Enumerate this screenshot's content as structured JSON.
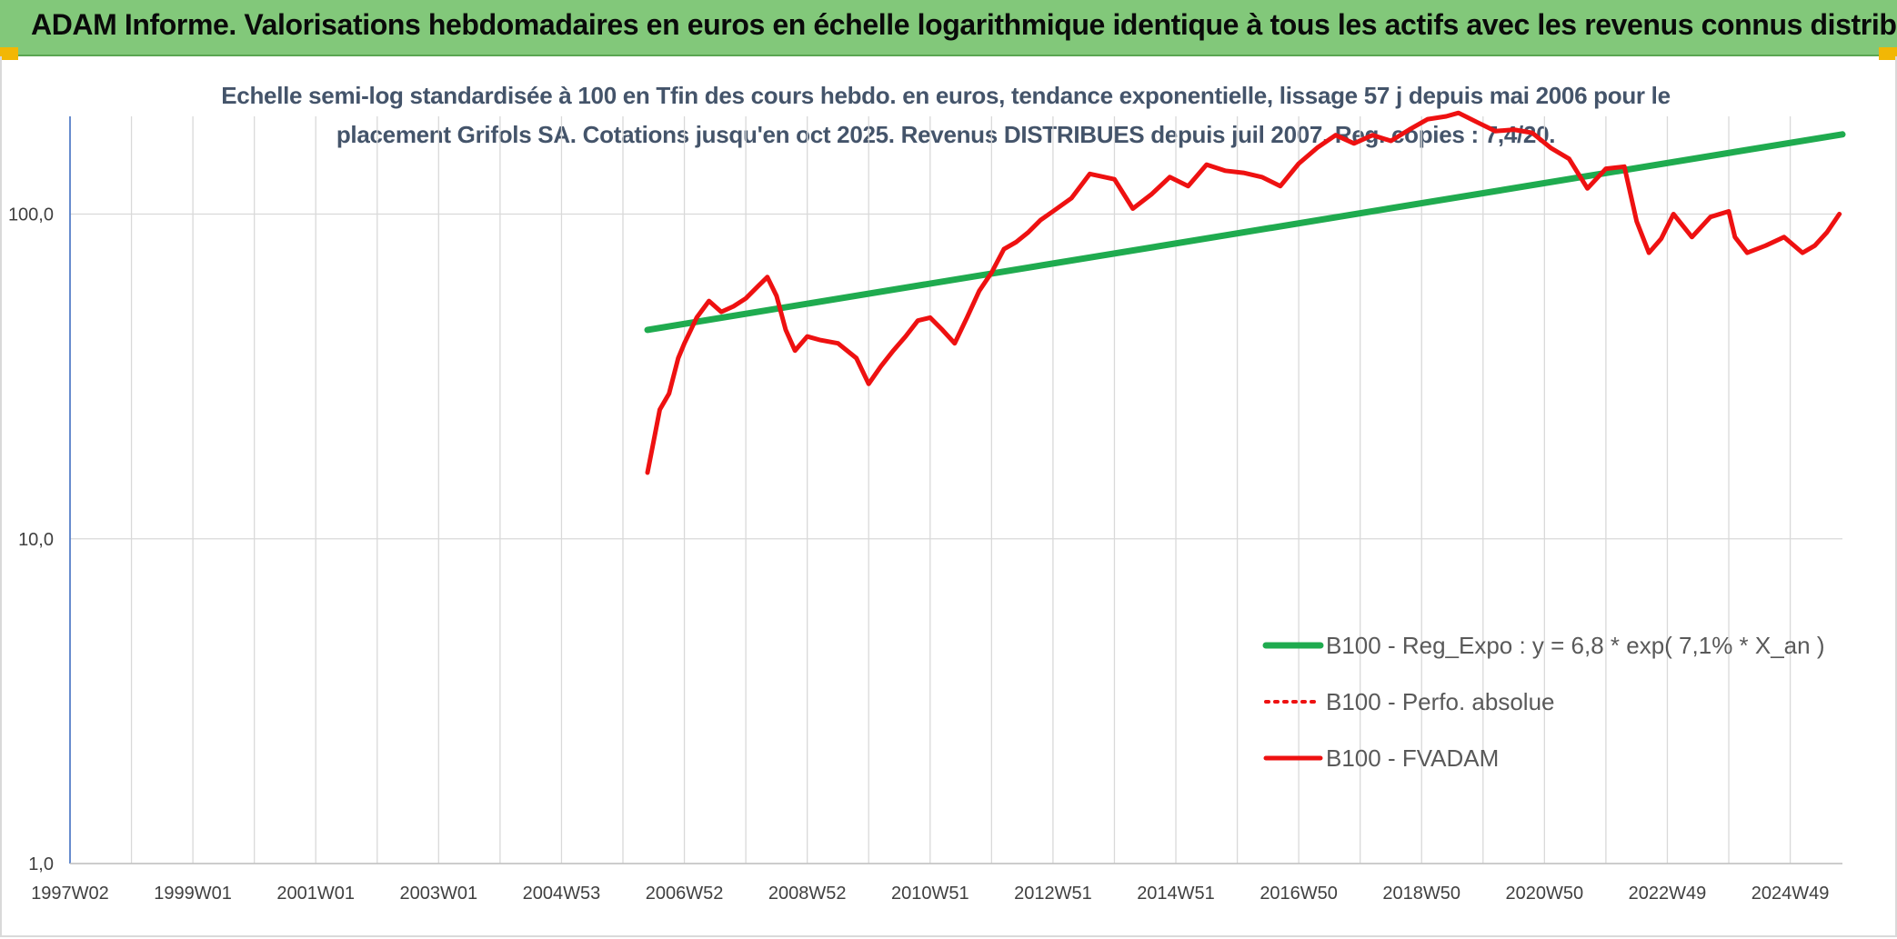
{
  "header": {
    "title": "ADAM Informe. Valorisations hebdomadaires en euros en échelle logarithmique identique à tous les actifs avec les revenus connus distribués"
  },
  "colors": {
    "banner": "#82c87a",
    "corner": "#f2b705",
    "regression": "#1fab4f",
    "fvadam": "#ee1111",
    "grid": "#d9d9d9",
    "axis": "#4472c4"
  },
  "chart_data": {
    "type": "line",
    "title_lines": [
      "Echelle semi-log standardisée à 100 en Tfin des cours hebdo. en euros, tendance exponentielle, lissage 57 j depuis mai 2006 pour le",
      "placement Grifols SA. Cotations jusqu'en oct 2025. Revenus DISTRIBUES depuis juil 2007. Reg. copies : 7,4/20."
    ],
    "y_scale": "log",
    "ylim": [
      1,
      200
    ],
    "y_ticks": [
      {
        "value": 1,
        "label": "1,0"
      },
      {
        "value": 10,
        "label": "10,0"
      },
      {
        "value": 100,
        "label": "100,0"
      }
    ],
    "xlim": [
      1997.0,
      2025.85
    ],
    "x_ticks": [
      {
        "value": 1997.0,
        "label": "1997W02"
      },
      {
        "value": 1999.0,
        "label": "1999W01"
      },
      {
        "value": 2001.0,
        "label": "2001W01"
      },
      {
        "value": 2003.0,
        "label": "2003W01"
      },
      {
        "value": 2005.0,
        "label": "2004W53"
      },
      {
        "value": 2007.0,
        "label": "2006W52"
      },
      {
        "value": 2009.0,
        "label": "2008W52"
      },
      {
        "value": 2011.0,
        "label": "2010W51"
      },
      {
        "value": 2013.0,
        "label": "2012W51"
      },
      {
        "value": 2015.0,
        "label": "2014W51"
      },
      {
        "value": 2017.0,
        "label": "2016W50"
      },
      {
        "value": 2019.0,
        "label": "2018W50"
      },
      {
        "value": 2021.0,
        "label": "2020W50"
      },
      {
        "value": 2023.0,
        "label": "2022W49"
      },
      {
        "value": 2025.0,
        "label": "2024W49"
      }
    ],
    "grid": true,
    "legend_position": "bottom-right",
    "series": [
      {
        "name": "B100 - Reg_Expo : y = 6,8 * exp( 7,1% * X_an )",
        "style": "solid-thick",
        "color": "#1fab4f",
        "x": [
          2006.4,
          2025.85
        ],
        "y": [
          44,
          176
        ]
      },
      {
        "name": "B100 - Perfo. absolue",
        "style": "dotted",
        "color": "#ee1111",
        "x": [],
        "y": []
      },
      {
        "name": "B100 - FVADAM",
        "style": "solid",
        "color": "#ee1111",
        "x": [
          2006.4,
          2006.5,
          2006.6,
          2006.75,
          2006.9,
          2007.0,
          2007.2,
          2007.4,
          2007.6,
          2007.8,
          2008.0,
          2008.2,
          2008.35,
          2008.5,
          2008.65,
          2008.8,
          2009.0,
          2009.2,
          2009.5,
          2009.8,
          2010.0,
          2010.2,
          2010.4,
          2010.6,
          2010.8,
          2011.0,
          2011.2,
          2011.4,
          2011.6,
          2011.8,
          2012.0,
          2012.2,
          2012.4,
          2012.6,
          2012.8,
          2013.0,
          2013.3,
          2013.6,
          2014.0,
          2014.3,
          2014.6,
          2014.9,
          2015.2,
          2015.5,
          2015.8,
          2016.1,
          2016.4,
          2016.7,
          2017.0,
          2017.3,
          2017.6,
          2017.9,
          2018.2,
          2018.5,
          2018.8,
          2019.1,
          2019.4,
          2019.6,
          2019.9,
          2020.2,
          2020.5,
          2020.8,
          2021.1,
          2021.4,
          2021.7,
          2022.0,
          2022.3,
          2022.5,
          2022.7,
          2022.9,
          2023.1,
          2023.4,
          2023.7,
          2024.0,
          2024.1,
          2024.3,
          2024.6,
          2024.9,
          2025.2,
          2025.4,
          2025.6,
          2025.8
        ],
        "y": [
          16,
          20,
          25,
          28,
          36,
          40,
          48,
          54,
          50,
          52,
          55,
          60,
          64,
          56,
          44,
          38,
          42,
          41,
          40,
          36,
          30,
          34,
          38,
          42,
          47,
          48,
          44,
          40,
          48,
          58,
          66,
          78,
          82,
          88,
          96,
          102,
          112,
          133,
          128,
          104,
          115,
          130,
          122,
          142,
          136,
          134,
          130,
          122,
          143,
          160,
          175,
          165,
          175,
          168,
          182,
          196,
          200,
          205,
          192,
          180,
          182,
          178,
          160,
          148,
          120,
          138,
          140,
          95,
          76,
          84,
          100,
          85,
          98,
          102,
          85,
          76,
          80,
          85,
          76,
          80,
          88,
          100
        ]
      }
    ]
  }
}
